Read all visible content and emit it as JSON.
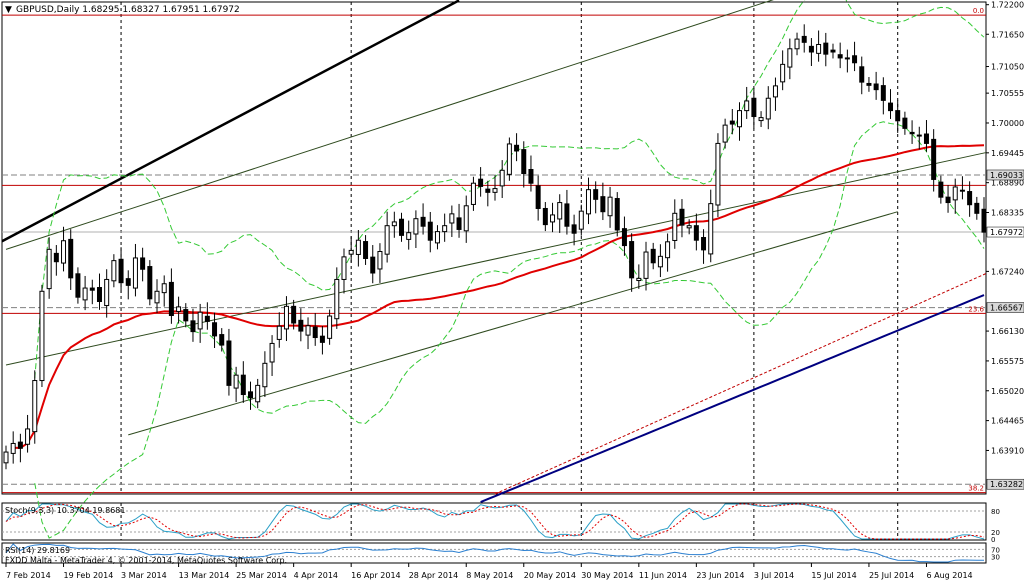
{
  "main_header": "GBPUSD,Daily  1.68295 1.68327 1.67951 1.67972",
  "stoch_header": "Stoch(9,3,3) 10.3704 19.8681",
  "rsi_header": "RSI(14) 29.8169",
  "footer": "FXDD Malta - MetaTrader 4, © 2001-2014, MetaQuotes Software Corp.",
  "fib_labels": [
    "0.0",
    "23.6",
    "38.2"
  ],
  "stoch_levels": [
    "80",
    "20",
    "0"
  ],
  "rsi_levels": [
    "70",
    "30"
  ],
  "colors": {
    "background": "#ffffff",
    "candle": "#000000",
    "ma_red": "#e00000",
    "ma_blue": "#000080",
    "bollinger": "#34c934",
    "channel": "#2e4a1e",
    "trendline_black": "#000000",
    "fib_red": "#c00000",
    "horizontal_gray": "#808080",
    "stoch_main": "#2aa0c8",
    "stoch_signal": "#e00000",
    "rsi_line": "#2a7fd0"
  },
  "chart_data": {
    "type": "candlestick",
    "symbol": "GBPUSD",
    "timeframe": "Daily",
    "ylim": [
      1.631,
      1.7225
    ],
    "y_ticks": [
      "1.72200",
      "1.71650",
      "1.71050",
      "1.70555",
      "1.70000",
      "1.69445",
      "1.68890",
      "1.68335",
      "1.67240",
      "1.66130",
      "1.65575",
      "1.65020",
      "1.64465",
      "1.63910"
    ],
    "price_labels": [
      {
        "value": 1.69033,
        "text": "1.69033",
        "highlight": false
      },
      {
        "value": 1.67972,
        "text": "1.67972",
        "highlight": true
      },
      {
        "value": 1.66567,
        "text": "1.66567",
        "highlight": false
      },
      {
        "value": 1.63282,
        "text": "1.63282",
        "highlight": false
      }
    ],
    "x_labels": [
      "7 Feb 2014",
      "19 Feb 2014",
      "3 Mar 2014",
      "13 Mar 2014",
      "25 Mar 2014",
      "4 Apr 2014",
      "16 Apr 2014",
      "28 Apr 2014",
      "8 May 2014",
      "20 May 2014",
      "30 May 2014",
      "11 Jun 2014",
      "23 Jun 2014",
      "3 Jul 2014",
      "15 Jul 2014",
      "25 Jul 2014",
      "6 Aug 2014"
    ],
    "x_label_index": [
      0,
      8,
      16,
      24,
      32,
      40,
      48,
      56,
      64,
      72,
      80,
      88,
      96,
      104,
      112,
      120,
      128
    ],
    "vertical_grid_index": [
      16,
      48,
      80,
      104,
      124
    ],
    "closes": [
      1.6388,
      1.6404,
      1.6395,
      1.6431,
      1.6521,
      1.6687,
      1.6765,
      1.6742,
      1.6781,
      1.6712,
      1.6676,
      1.6693,
      1.6689,
      1.6668,
      1.6709,
      1.6744,
      1.6703,
      1.6698,
      1.6749,
      1.6728,
      1.6673,
      1.6687,
      1.6701,
      1.6642,
      1.6658,
      1.6632,
      1.6612,
      1.6648,
      1.6631,
      1.6604,
      1.6587,
      1.6512,
      1.6531,
      1.6495,
      1.6489,
      1.6512,
      1.6553,
      1.659,
      1.6622,
      1.6659,
      1.6628,
      1.6613,
      1.6623,
      1.6601,
      1.6592,
      1.6641,
      1.6709,
      1.6751,
      1.6763,
      1.6782,
      1.6748,
      1.6721,
      1.6761,
      1.6809,
      1.6816,
      1.6791,
      1.6796,
      1.6822,
      1.6808,
      1.6782,
      1.6798,
      1.6809,
      1.6831,
      1.6802,
      1.6846,
      1.6888,
      1.6882,
      1.6871,
      1.6878,
      1.6912,
      1.6961,
      1.6948,
      1.6906,
      1.6888,
      1.6841,
      1.6811,
      1.6829,
      1.6852,
      1.6808,
      1.6795,
      1.6836,
      1.6876,
      1.6858,
      1.6835,
      1.6862,
      1.6801,
      1.6772,
      1.6712,
      1.6711,
      1.676,
      1.674,
      1.6752,
      1.6779,
      1.6832,
      1.681,
      1.6809,
      1.6782,
      1.6764,
      1.685,
      1.6962,
      1.6996,
      1.6998,
      1.7023,
      1.7041,
      1.7012,
      1.701,
      1.7046,
      1.7069,
      1.7109,
      1.7138,
      1.7156,
      1.715,
      1.7132,
      1.7146,
      1.7128,
      1.7132,
      1.7121,
      1.712,
      1.7112,
      1.7076,
      1.707,
      1.7062,
      1.7042,
      1.7023,
      1.7004,
      1.699,
      1.698,
      1.6977,
      1.6962,
      1.6895,
      1.6862,
      1.6852,
      1.6881,
      1.6875,
      1.6848,
      1.6832,
      1.6797
    ]
  }
}
